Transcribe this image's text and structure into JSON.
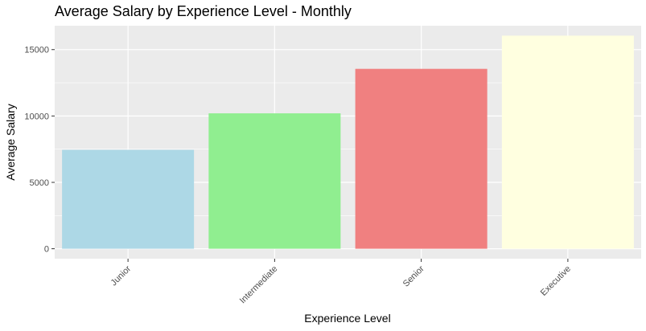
{
  "chart_data": {
    "type": "bar",
    "title": "Average Salary by Experience Level - Monthly",
    "xlabel": "Experience Level",
    "ylabel": "Average Salary",
    "categories": [
      "Junior",
      "Intermediate",
      "Senior",
      "Executive"
    ],
    "values": [
      7450,
      10200,
      13550,
      16050
    ],
    "colors": [
      "#ADD8E6",
      "#90EE90",
      "#F08080",
      "#FFFFE0"
    ],
    "yticks": [
      0,
      5000,
      10000,
      15000
    ],
    "ylim": [
      -750,
      16800
    ],
    "grid": true,
    "panel_background": "#EBEBEB",
    "grid_color": "#FFFFFF"
  }
}
